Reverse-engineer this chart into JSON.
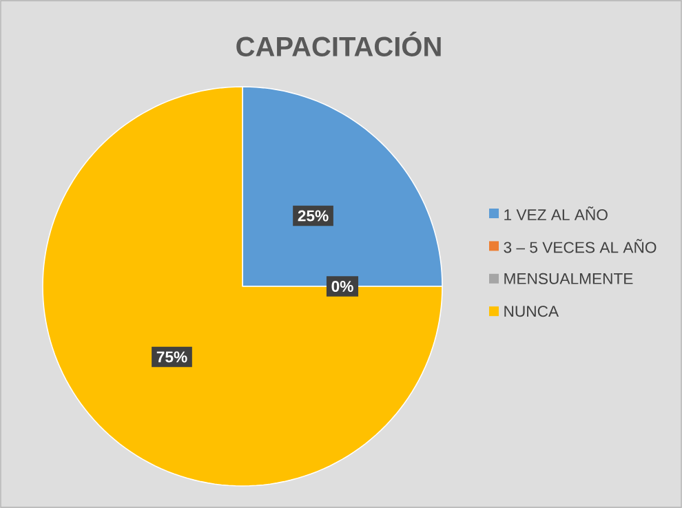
{
  "chart_data": {
    "type": "pie",
    "title": "CAPACITACIÓN",
    "categories": [
      "1 VEZ AL AÑO",
      "3 – 5 VECES AL AÑO",
      "MENSUALMENTE",
      "NUNCA"
    ],
    "values": [
      25,
      0,
      0,
      75
    ],
    "colors": [
      "#5b9bd5",
      "#ed7d31",
      "#a5a5a5",
      "#ffc000"
    ],
    "value_labels": [
      "25%",
      "0%",
      null,
      "75%"
    ],
    "legend": "right"
  }
}
